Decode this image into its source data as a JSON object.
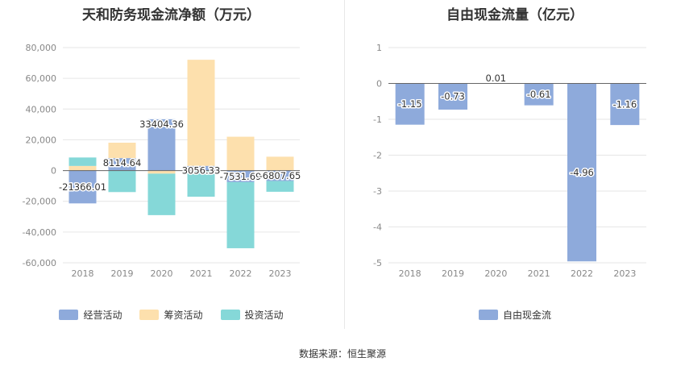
{
  "chart_data": [
    {
      "type": "bar",
      "stacked": true,
      "title": "天和防务现金流净额（万元）",
      "categories": [
        "2018",
        "2019",
        "2020",
        "2021",
        "2022",
        "2023"
      ],
      "ylim": [
        -60000,
        80000
      ],
      "yticks": [
        "80,000",
        "60,000",
        "40,000",
        "20,000",
        "0",
        "-20,000",
        "-40,000",
        "-60,000"
      ],
      "grid": true,
      "legend_position": "bottom",
      "series": [
        {
          "name": "经营活动",
          "color": "#8eaadb",
          "values": [
            -21366.01,
            8114.64,
            33404.36,
            3056.33,
            -7531.69,
            -6807.65
          ]
        },
        {
          "name": "筹资活动",
          "color": "#fde0ad",
          "values": [
            3000,
            10000,
            -2000,
            69000,
            22000,
            9000
          ]
        },
        {
          "name": "投资活动",
          "color": "#85d8d8",
          "values": [
            5500,
            -14000,
            -27000,
            -17000,
            -43000,
            -7000
          ]
        }
      ],
      "data_labels": [
        "-21366.01",
        "8114.64",
        "33404.36",
        "3056.33",
        "-7531.69",
        "-6807.65"
      ]
    },
    {
      "type": "bar",
      "title": "自由现金流量（亿元）",
      "categories": [
        "2018",
        "2019",
        "2020",
        "2021",
        "2022",
        "2023"
      ],
      "ylim": [
        -5,
        1
      ],
      "yticks": [
        "1",
        "0",
        "-1",
        "-2",
        "-3",
        "-4",
        "-5"
      ],
      "grid": true,
      "legend_position": "bottom",
      "series": [
        {
          "name": "自由现金流",
          "color": "#8eaadb",
          "values": [
            -1.15,
            -0.73,
            0.01,
            -0.61,
            -4.96,
            -1.16
          ]
        }
      ],
      "data_labels": [
        "-1.15",
        "-0.73",
        "0.01",
        "-0.61",
        "-4.96",
        "-1.16"
      ]
    }
  ],
  "footer": {
    "source": "数据来源：恒生聚源"
  }
}
